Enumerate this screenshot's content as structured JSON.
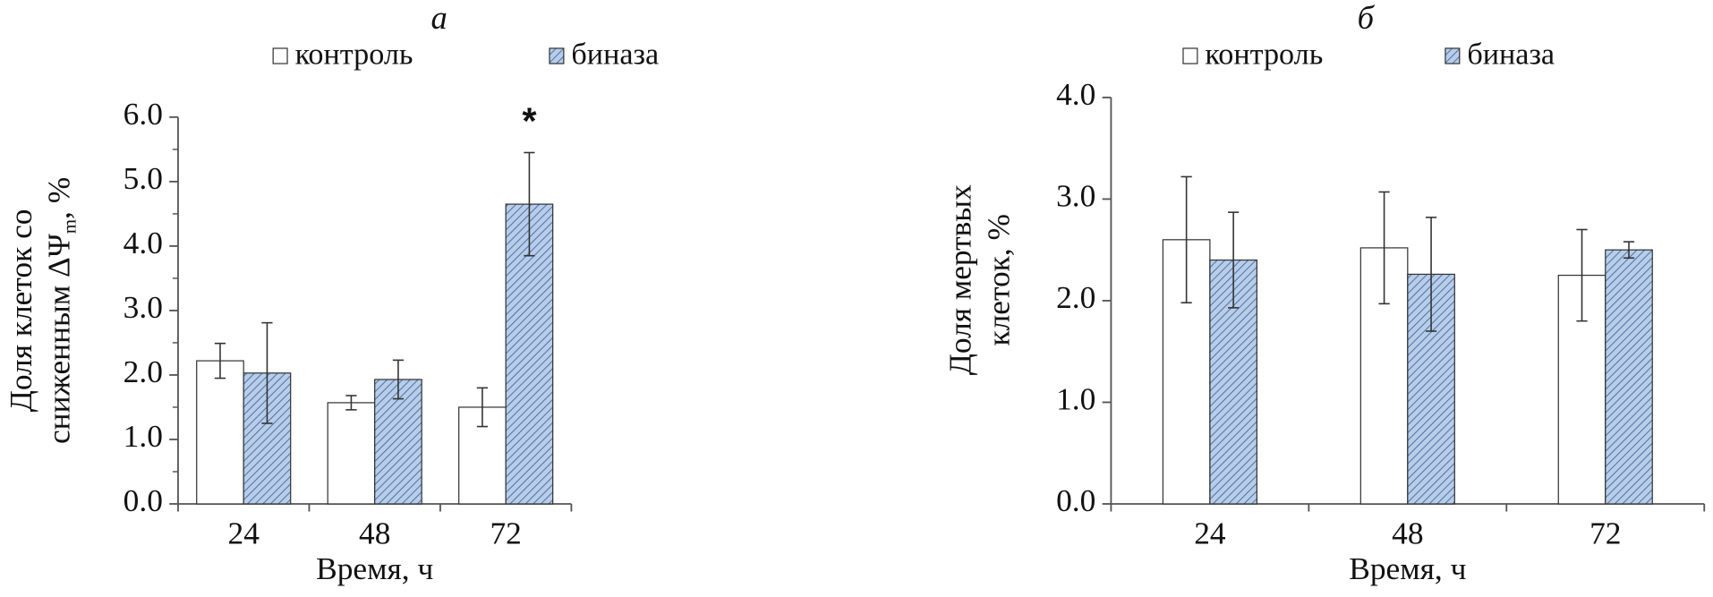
{
  "chart_data": [
    {
      "type": "bar",
      "title": "а",
      "y_label": {
        "line1": "Доля клеток со",
        "line2": "сниженным ΔΨ",
        "subscript": "m",
        "suffix": ", %"
      },
      "x_label": "Время, ч",
      "categories": [
        "24",
        "48",
        "72"
      ],
      "series": [
        {
          "name": "контроль",
          "color": "#ffffff",
          "values": [
            2.22,
            1.57,
            1.5
          ],
          "errors": [
            0.27,
            0.11,
            0.3
          ]
        },
        {
          "name": "биназа",
          "color": "#b7cde9",
          "hatch": true,
          "values": [
            2.03,
            1.93,
            4.65
          ],
          "errors": [
            0.78,
            0.3,
            0.8
          ]
        }
      ],
      "ylim": [
        0,
        6
      ],
      "yticks": [
        {
          "value": 0,
          "label": "0.0"
        },
        {
          "value": 1,
          "label": "1.0"
        },
        {
          "value": 2,
          "label": "2.0"
        },
        {
          "value": 3,
          "label": "3.0"
        },
        {
          "value": 4,
          "label": "4.0"
        },
        {
          "value": 5,
          "label": "5.0"
        },
        {
          "value": 6,
          "label": "6.0"
        }
      ],
      "minor_ticks": true,
      "annotations": [
        {
          "text": "*",
          "category": "72",
          "series": "биназа"
        }
      ]
    },
    {
      "type": "bar",
      "title": "б",
      "y_label": {
        "line1": "Доля мертвых",
        "line2": "клеток, %"
      },
      "x_label": "Время, ч",
      "categories": [
        "24",
        "48",
        "72"
      ],
      "series": [
        {
          "name": "контроль",
          "color": "#ffffff",
          "values": [
            2.6,
            2.52,
            2.25
          ],
          "errors": [
            0.62,
            0.55,
            0.45
          ]
        },
        {
          "name": "биназа",
          "color": "#b7cde9",
          "hatch": true,
          "values": [
            2.4,
            2.26,
            2.5
          ],
          "errors": [
            0.47,
            0.56,
            0.08
          ]
        }
      ],
      "ylim": [
        0,
        4
      ],
      "yticks": [
        {
          "value": 0,
          "label": "0.0"
        },
        {
          "value": 1,
          "label": "1.0"
        },
        {
          "value": 2,
          "label": "2.0"
        },
        {
          "value": 3,
          "label": "3.0"
        },
        {
          "value": 4,
          "label": "4.0"
        }
      ],
      "minor_ticks": false
    }
  ]
}
